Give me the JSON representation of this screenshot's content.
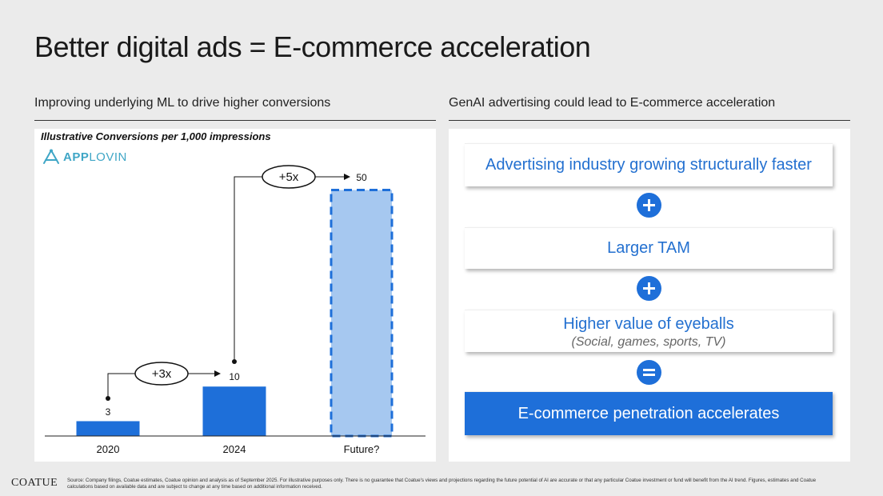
{
  "header": {
    "title": "Better digital ads = E-commerce acceleration"
  },
  "left": {
    "subtitle": "Improving underlying ML to drive higher conversions",
    "chart_note": "Illustrative Conversions per 1,000 impressions",
    "logo": {
      "bold": "APP",
      "light": "LOVIN",
      "icon": "applovin-logo-icon",
      "color": "#3fa6c6"
    }
  },
  "right": {
    "subtitle": "GenAI advertising could lead to E-commerce acceleration",
    "boxes": [
      {
        "label": "Advertising industry growing structurally faster"
      },
      {
        "label": "Larger TAM"
      },
      {
        "label": "Higher value of eyeballs",
        "note": "(Social, games, sports, TV)"
      },
      {
        "label": "E-commerce penetration accelerates"
      }
    ],
    "operators": [
      "plus",
      "plus",
      "equals"
    ]
  },
  "chart_data": {
    "type": "bar",
    "title": "Illustrative Conversions per 1,000 impressions",
    "categories": [
      "2020",
      "2024",
      "Future?"
    ],
    "values": [
      3,
      10,
      50
    ],
    "data_labels": [
      "3",
      "10",
      "50"
    ],
    "annotations": [
      {
        "label": "+3x",
        "from": "2020",
        "to": "2024"
      },
      {
        "label": "+5x",
        "from": "2024",
        "to": "Future?"
      }
    ],
    "styles": [
      "solid",
      "solid",
      "dashed-light"
    ],
    "colors": {
      "bar": "#1e6fd9",
      "projected_fill": "#a6c8f0",
      "projected_stroke": "#1e6fd9"
    },
    "ylim": [
      0,
      50
    ],
    "grid": false
  },
  "footer": {
    "brand": "COATUE",
    "source": "Source: Company filings, Coatue estimates, Coatue opinion and analysis as of September 2025. For illustrative purposes only. There is no guarantee that Coatue's views and projections regarding the future potential of AI are accurate or that any particular Coatue investment or fund will benefit from the AI trend.  Figures, estimates and Coatue calculations based on available data and are subject to change at any time based on additional information received."
  },
  "colors": {
    "accent": "#1e6fd9",
    "background": "#ebebeb"
  }
}
